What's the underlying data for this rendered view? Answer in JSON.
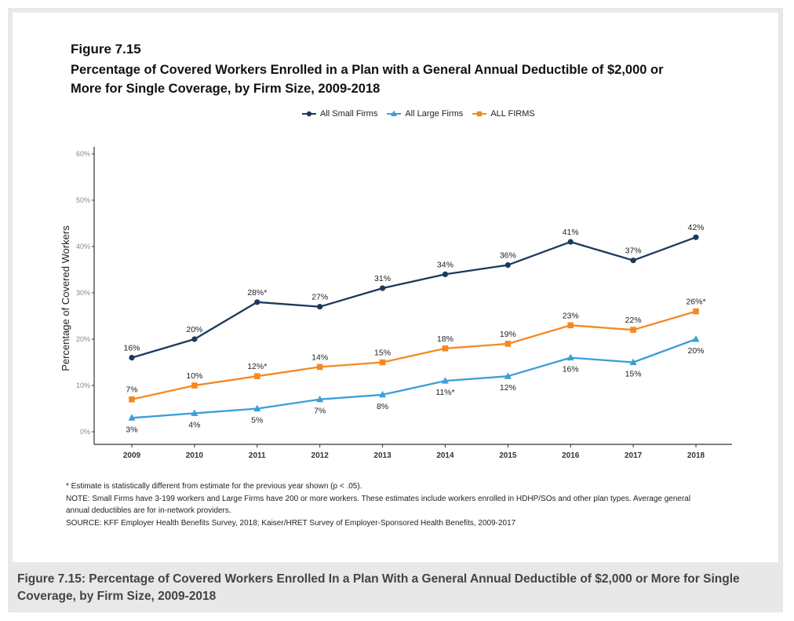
{
  "figure_label": "Figure 7.15",
  "figure_title": "Percentage of Covered Workers Enrolled in a Plan with a General Annual Deductible of $2,000 or More for Single Coverage, by Firm Size, 2009-2018",
  "caption": "Figure 7.15: Percentage of Covered Workers Enrolled In a Plan With a General Annual Deductible of $2,000 or More for Single Coverage, by Firm Size, 2009-2018",
  "notes": [
    "* Estimate is statistically different from estimate for the previous year shown (p < .05).",
    "NOTE: Small Firms have 3-199 workers and Large Firms have 200 or more workers. These estimates include workers enrolled in HDHP/SOs and other plan types. Average general annual deductibles are for in-network providers.",
    "SOURCE: KFF Employer Health Benefits Survey, 2018; Kaiser/HRET Survey of Employer-Sponsored Health Benefits, 2009-2017"
  ],
  "chart_data": {
    "type": "line",
    "title": "Percentage of Covered Workers Enrolled in a Plan with a General Annual Deductible of $2,000 or More for Single Coverage, by Firm Size, 2009-2018",
    "xlabel": "",
    "ylabel": "Percentage of Covered Workers",
    "x": [
      "2009",
      "2010",
      "2011",
      "2012",
      "2013",
      "2014",
      "2015",
      "2016",
      "2017",
      "2018"
    ],
    "ylim": [
      0,
      60
    ],
    "yticks": [
      0,
      10,
      20,
      30,
      40,
      50,
      60
    ],
    "ytick_labels": [
      "0%",
      "10%",
      "20%",
      "30%",
      "40%",
      "50%",
      "60%"
    ],
    "grid": false,
    "legend_position": "top-center",
    "series": [
      {
        "name": "All Small Firms",
        "color": "#1b3a5c",
        "marker": "circle",
        "values": [
          16,
          20,
          28,
          27,
          31,
          34,
          36,
          41,
          37,
          42
        ],
        "labels": [
          "16%",
          "20%",
          "28%*",
          "27%",
          "31%",
          "34%",
          "36%",
          "41%",
          "37%",
          "42%"
        ],
        "label_pos": "above"
      },
      {
        "name": "All Large Firms",
        "color": "#3a9fd9",
        "marker": "triangle",
        "values": [
          3,
          4,
          5,
          7,
          8,
          11,
          12,
          16,
          15,
          20
        ],
        "labels": [
          "3%",
          "4%",
          "5%",
          "7%",
          "8%",
          "11%*",
          "12%",
          "16%",
          "15%",
          "20%"
        ],
        "label_pos": "below"
      },
      {
        "name": "ALL FIRMS",
        "color": "#f5891f",
        "marker": "square",
        "values": [
          7,
          10,
          12,
          14,
          15,
          18,
          19,
          23,
          22,
          26
        ],
        "labels": [
          "7%",
          "10%",
          "12%*",
          "14%",
          "15%",
          "18%",
          "19%",
          "23%",
          "22%",
          "26%*"
        ],
        "label_pos": "above"
      }
    ]
  }
}
